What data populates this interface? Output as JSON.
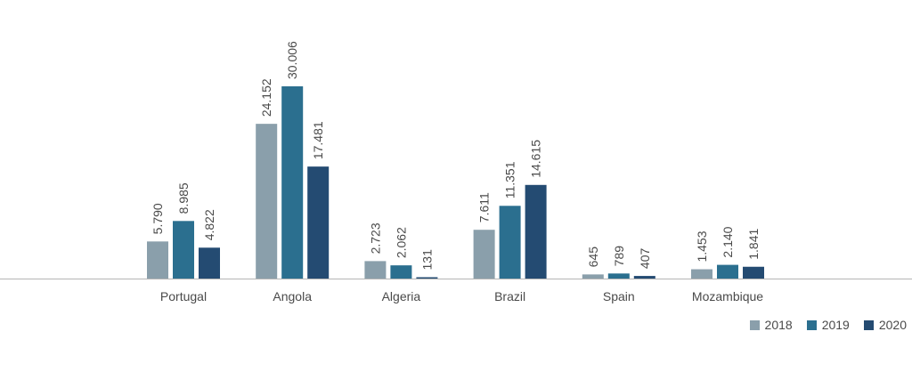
{
  "chart_data": {
    "type": "bar",
    "categories": [
      "Portugal",
      "Angola",
      "Algeria",
      "Brazil",
      "Spain",
      "Mozambique"
    ],
    "series": [
      {
        "name": "2018",
        "color": "#8a9fab",
        "values": [
          5790,
          24152,
          2723,
          7611,
          645,
          1453
        ],
        "labels": [
          "5.790",
          "24.152",
          "2.723",
          "7.611",
          "645",
          "1.453"
        ]
      },
      {
        "name": "2019",
        "color": "#2b6f8f",
        "values": [
          8985,
          30006,
          2062,
          11351,
          789,
          2140
        ],
        "labels": [
          "8.985",
          "30.006",
          "2.062",
          "11.351",
          "789",
          "2.140"
        ]
      },
      {
        "name": "2020",
        "color": "#244b72",
        "values": [
          4822,
          17481,
          131,
          14615,
          407,
          1841
        ],
        "labels": [
          "4.822",
          "17.481",
          "131",
          "14.615",
          "407",
          "1.841"
        ]
      }
    ],
    "ylim": [
      0,
      30006
    ],
    "grid": false,
    "legend_position": "bottom-right"
  }
}
